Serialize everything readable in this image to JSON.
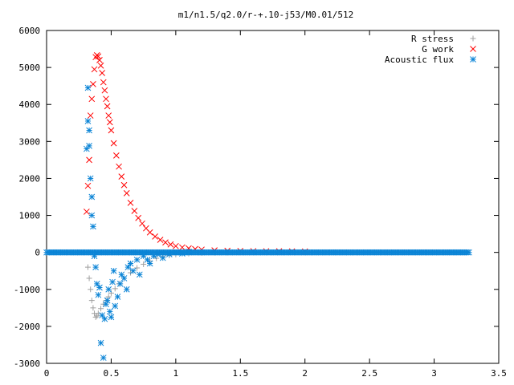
{
  "chart_data": {
    "type": "scatter",
    "title": "m1/n1.5/q2.0/r-+.10-j53/M0.01/512",
    "xlim": [
      0,
      3.5
    ],
    "ylim": [
      -3000,
      6000
    ],
    "x_ticks": [
      "0",
      "0.5",
      "1",
      "1.5",
      "2",
      "2.5",
      "3",
      "3.5"
    ],
    "x_tick_values": [
      0,
      0.5,
      1,
      1.5,
      2,
      2.5,
      3,
      3.5
    ],
    "y_ticks": [
      "-3000",
      "-2000",
      "-1000",
      "0",
      "1000",
      "2000",
      "3000",
      "4000",
      "5000",
      "6000"
    ],
    "y_tick_values": [
      -3000,
      -2000,
      -1000,
      0,
      1000,
      2000,
      3000,
      4000,
      5000,
      6000
    ],
    "grid": false,
    "legend_position": "top-right",
    "series": [
      {
        "name": "R stress",
        "marker": "plus",
        "color": "#a0a0a0",
        "x": [
          0.32,
          0.33,
          0.34,
          0.35,
          0.36,
          0.37,
          0.38,
          0.39,
          0.4,
          0.42,
          0.44,
          0.46,
          0.48,
          0.5,
          0.53,
          0.56,
          0.6,
          0.65,
          0.7,
          0.75,
          0.8,
          0.85,
          0.9,
          0.95,
          1.0,
          1.1,
          1.2,
          1.3,
          1.4,
          1.5,
          1.6,
          1.8,
          2.0
        ],
        "y": [
          -400,
          -700,
          -1000,
          -1300,
          -1500,
          -1650,
          -1750,
          -1720,
          -1650,
          -1520,
          -1400,
          -1300,
          -1200,
          -1100,
          -980,
          -850,
          -700,
          -550,
          -420,
          -320,
          -230,
          -160,
          -110,
          -80,
          -55,
          -30,
          -15,
          -8,
          -4,
          -2,
          -1,
          0,
          0
        ]
      },
      {
        "name": "G work",
        "marker": "x",
        "color": "#ff0000",
        "x": [
          0.31,
          0.32,
          0.33,
          0.34,
          0.35,
          0.36,
          0.37,
          0.38,
          0.39,
          0.4,
          0.41,
          0.42,
          0.43,
          0.44,
          0.45,
          0.46,
          0.47,
          0.48,
          0.49,
          0.5,
          0.52,
          0.54,
          0.56,
          0.58,
          0.6,
          0.62,
          0.65,
          0.68,
          0.71,
          0.74,
          0.77,
          0.8,
          0.84,
          0.88,
          0.92,
          0.96,
          1.0,
          1.05,
          1.1,
          1.15,
          1.2,
          1.3,
          1.4,
          1.5,
          1.6,
          1.7,
          1.8,
          1.9,
          2.0
        ],
        "y": [
          1100,
          1800,
          2500,
          3700,
          4150,
          4550,
          4950,
          5280,
          5330,
          5300,
          5200,
          5050,
          4850,
          4600,
          4380,
          4150,
          3950,
          3700,
          3520,
          3300,
          2950,
          2620,
          2320,
          2050,
          1820,
          1600,
          1340,
          1120,
          930,
          780,
          650,
          540,
          430,
          340,
          270,
          215,
          170,
          135,
          110,
          90,
          75,
          55,
          45,
          40,
          35,
          32,
          30,
          28,
          25
        ]
      },
      {
        "name": "Acoustic flux",
        "marker": "star",
        "color": "#0b84d6",
        "x": [
          0.31,
          0.32,
          0.32,
          0.33,
          0.33,
          0.34,
          0.35,
          0.35,
          0.36,
          0.37,
          0.38,
          0.39,
          0.4,
          0.41,
          0.42,
          0.43,
          0.44,
          0.45,
          0.46,
          0.47,
          0.48,
          0.49,
          0.5,
          0.51,
          0.52,
          0.53,
          0.55,
          0.57,
          0.58,
          0.6,
          0.62,
          0.63,
          0.65,
          0.67,
          0.7,
          0.72,
          0.75,
          0.78,
          0.8,
          0.83,
          0.86,
          0.9,
          0.95,
          1.0,
          1.05,
          1.1,
          1.2
        ],
        "y": [
          2800,
          4450,
          3550,
          3300,
          2880,
          2000,
          1500,
          1000,
          700,
          -100,
          -400,
          -850,
          -1150,
          -950,
          -2450,
          -1700,
          -2850,
          -1800,
          -1400,
          -1300,
          -1000,
          -1600,
          -1750,
          -800,
          -500,
          -1450,
          -1200,
          -850,
          -600,
          -700,
          -1000,
          -400,
          -300,
          -500,
          -200,
          -600,
          -100,
          -200,
          -300,
          -100,
          -50,
          -150,
          -50,
          0,
          -30,
          20,
          0
        ],
        "baseline": {
          "from": 0,
          "to": 3.27,
          "value": 0
        }
      }
    ]
  }
}
